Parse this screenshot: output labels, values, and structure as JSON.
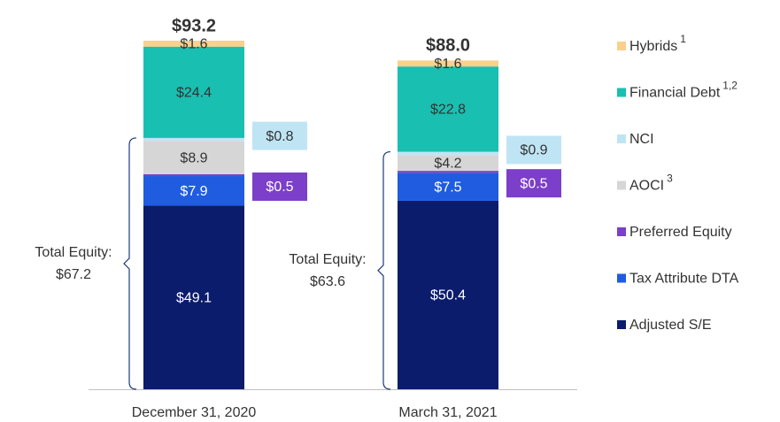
{
  "chart_data": {
    "type": "stacked_bar",
    "categories": [
      "December 31, 2020",
      "March 31, 2021"
    ],
    "series": [
      {
        "name": "Adjusted S/E",
        "color": "#0b1c6c",
        "text_color": "#ffffff",
        "values": [
          49.1,
          50.4
        ],
        "value_labels": [
          "$49.1",
          "$50.4"
        ]
      },
      {
        "name": "Tax Attribute DTA",
        "color": "#1f5ce0",
        "text_color": "#ffffff",
        "values": [
          7.9,
          7.5
        ],
        "value_labels": [
          "$7.9",
          "$7.5"
        ]
      },
      {
        "name": "Preferred Equity",
        "color": "#7b3fc9",
        "text_color": "#ffffff",
        "label": "outside",
        "values": [
          0.5,
          0.5
        ],
        "value_labels": [
          "$0.5",
          "$0.5"
        ]
      },
      {
        "name": "AOCI",
        "note": "3",
        "color": "#d6d6d6",
        "text_color": "#333333",
        "values": [
          8.9,
          4.2
        ],
        "value_labels": [
          "$8.9",
          "$4.2"
        ]
      },
      {
        "name": "NCI",
        "color": "#bfe5f5",
        "text_color": "#333333",
        "label": "outside",
        "values": [
          0.8,
          0.9
        ],
        "value_labels": [
          "$0.8",
          "$0.9"
        ]
      },
      {
        "name": "Financial Debt",
        "note": "1,2",
        "color": "#19bfb0",
        "text_color": "#333333",
        "values": [
          24.4,
          22.8
        ],
        "value_labels": [
          "$24.4",
          "$22.8"
        ]
      },
      {
        "name": "Hybrids",
        "note": "1",
        "color": "#f9d08c",
        "text_color": "#333333",
        "values": [
          1.6,
          1.6
        ],
        "value_labels": [
          "$1.6",
          "$1.6"
        ]
      }
    ],
    "totals": [
      93.2,
      88.0
    ],
    "total_labels": [
      "$93.2",
      "$88.0"
    ],
    "total_equity": {
      "label": "Total Equity:",
      "values": [
        67.2,
        63.6
      ],
      "value_labels": [
        "$67.2",
        "$63.6"
      ]
    }
  }
}
